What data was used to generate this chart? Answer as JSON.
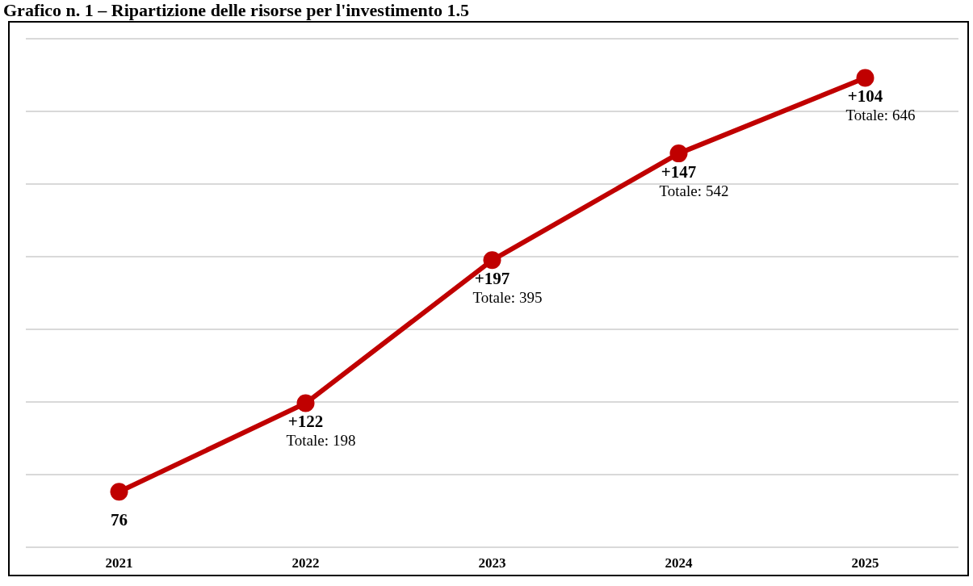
{
  "chart_data": {
    "type": "line",
    "title": "Grafico n. 1 – Ripartizione delle risorse per l'investimento 1.5",
    "categories": [
      "2021",
      "2022",
      "2023",
      "2024",
      "2025"
    ],
    "series": [
      {
        "color": "#c00000",
        "values": [
          76,
          198,
          395,
          542,
          646
        ]
      }
    ],
    "annotations": [
      {
        "text": "+122",
        "x": "2022",
        "y": 198
      },
      {
        "text": "Totale:",
        "x": "2022",
        "y": 198
      },
      {
        "text": "+197",
        "x": "2023",
        "y": 395
      },
      {
        "text": "Totale:",
        "x": "2023",
        "y": 395
      },
      {
        "text": "+147",
        "x": "2024",
        "y": 542
      },
      {
        "text": "Totale:",
        "x": "2024",
        "y": 542
      },
      {
        "text": "+104",
        "x": "2025",
        "y": 646
      },
      {
        "text": "Totale:",
        "x": "2025",
        "y": 646
      }
    ],
    "ylim": [
      0,
      700
    ],
    "yticks": [
      {
        "value": 0,
        "label": null
      },
      {
        "value": 100,
        "label": null
      },
      {
        "value": 200,
        "label": null
      },
      {
        "value": 300,
        "label": null
      },
      {
        "value": 400,
        "label": null
      },
      {
        "value": 500,
        "label": null
      },
      {
        "value": 600,
        "label": null
      },
      {
        "value": 700,
        "label": null
      }
    ],
    "data_labels": true,
    "grid": "y",
    "tick_labels": "x",
    "marker": "circle",
    "line_style": "solid",
    "legend": false
  }
}
